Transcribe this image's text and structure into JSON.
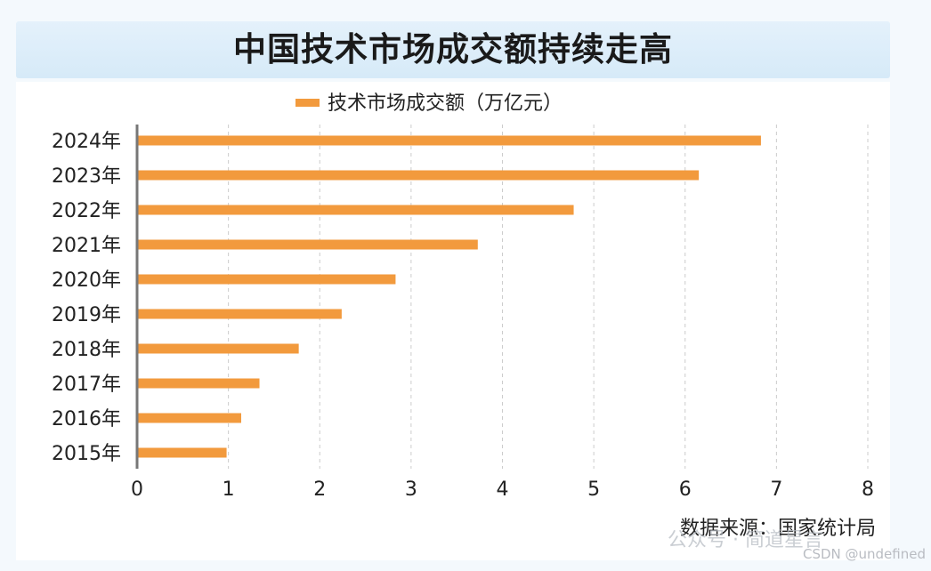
{
  "chart_data": {
    "type": "bar",
    "orientation": "horizontal",
    "title": "中国技术市场成交额持续走高",
    "legend": {
      "label": "技术市场成交额（万亿元）",
      "placement": "top-center"
    },
    "categories": [
      "2024年",
      "2023年",
      "2022年",
      "2021年",
      "2020年",
      "2019年",
      "2018年",
      "2017年",
      "2016年",
      "2015年"
    ],
    "series": [
      {
        "name": "技术市场成交额（万亿元）",
        "values": [
          6.83,
          6.15,
          4.78,
          3.73,
          2.83,
          2.24,
          1.77,
          1.34,
          1.14,
          0.98
        ]
      }
    ],
    "xlim": [
      0,
      8
    ],
    "xticks": [
      "0",
      "1",
      "2",
      "3",
      "4",
      "5",
      "6",
      "7",
      "8"
    ],
    "grid": "vertical dashed",
    "colors": {
      "bar": "#f29a3d",
      "axis": "#777777",
      "grid": "#cccccc"
    },
    "source": "数据来源：国家统计局"
  },
  "watermark": "CSDN @undefined",
  "overlay_watermark": "公众号 · 简道星言"
}
